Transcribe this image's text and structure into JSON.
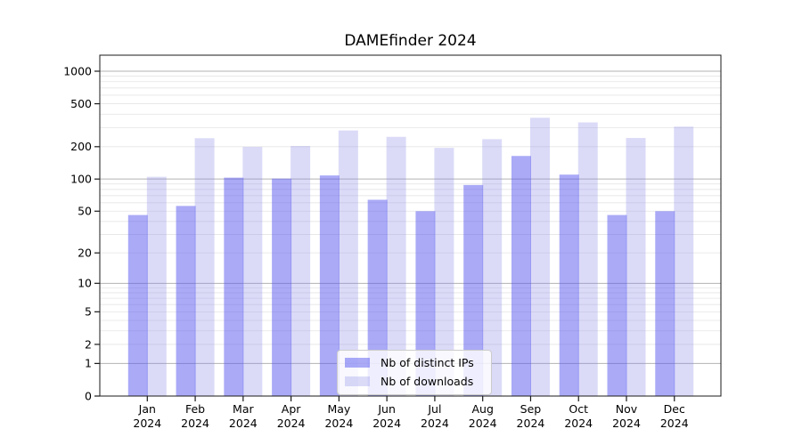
{
  "chart_data": {
    "type": "bar",
    "title": "DAMEfinder 2024",
    "months": [
      "Jan",
      "Feb",
      "Mar",
      "Apr",
      "May",
      "Jun",
      "Jul",
      "Aug",
      "Sep",
      "Oct",
      "Nov",
      "Dec"
    ],
    "year": "2024",
    "categories": [
      "Jan 2024",
      "Feb 2024",
      "Mar 2024",
      "Apr 2024",
      "May 2024",
      "Jun 2024",
      "Jul 2024",
      "Aug 2024",
      "Sep 2024",
      "Oct 2024",
      "Nov 2024",
      "Dec 2024"
    ],
    "series": [
      {
        "name": "Nb of distinct IPs",
        "color": "rgba(85,85,240,0.5)",
        "solid_color": "#aaaaf6",
        "values": [
          46,
          56,
          103,
          101,
          108,
          64,
          50,
          88,
          164,
          110,
          46,
          50
        ]
      },
      {
        "name": "Nb of downloads",
        "color": "rgba(135,135,232,0.3)",
        "solid_color": "#dbdbf8",
        "values": [
          105,
          240,
          199,
          203,
          283,
          247,
          195,
          235,
          371,
          336,
          241,
          307
        ]
      }
    ],
    "yscale": "log1p",
    "ylim": [
      0,
      1400
    ],
    "y_ticks": [
      0,
      1,
      2,
      5,
      10,
      20,
      50,
      100,
      200,
      500,
      1000
    ],
    "y_major_ticks": [
      1,
      10,
      100,
      1000
    ],
    "y_minor_unlabeled": [
      3,
      4,
      6,
      7,
      8,
      9,
      30,
      40,
      60,
      70,
      80,
      90,
      300,
      400,
      600,
      700,
      800,
      900
    ],
    "grid": true,
    "legend_position": "lower center inside",
    "xlabel": "",
    "ylabel": ""
  },
  "legend": {
    "items": [
      {
        "label": "Nb of distinct IPs"
      },
      {
        "label": "Nb of downloads"
      }
    ]
  },
  "colors": {
    "background": "#ffffff",
    "spine": "#1a1a1a",
    "major_grid": "#b3b3b3",
    "minor_grid": "#e5e5e5",
    "tick_text": "#000000"
  }
}
